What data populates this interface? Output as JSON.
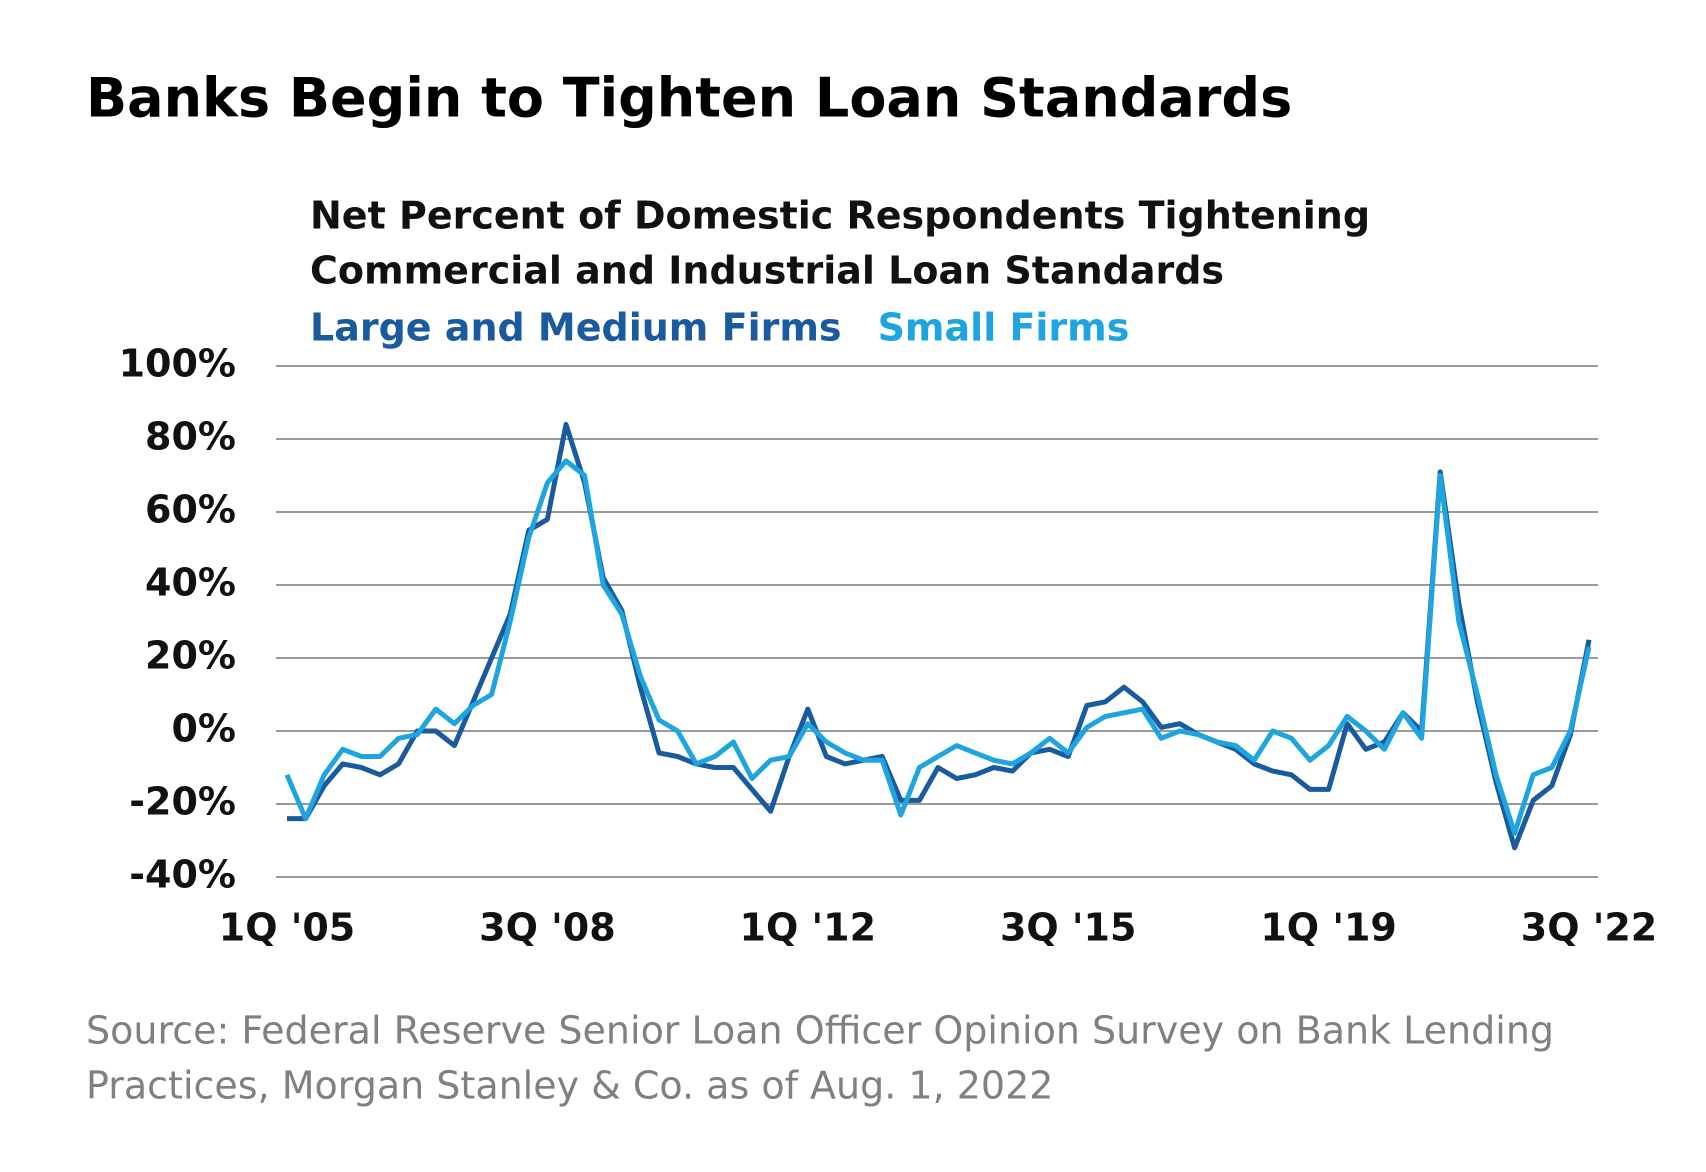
{
  "chart_data": {
    "type": "line",
    "title": "Banks Begin to Tighten Loan Standards",
    "subtitle": [
      "Net Percent of Domestic Respondents Tightening",
      "Commercial and Industrial Loan Standards"
    ],
    "categories": [
      "1Q '05",
      null,
      null,
      null,
      null,
      null,
      null,
      null,
      null,
      null,
      null,
      null,
      null,
      null,
      "3Q '08",
      null,
      null,
      null,
      null,
      null,
      null,
      null,
      null,
      null,
      null,
      null,
      null,
      null,
      "1Q '12",
      null,
      null,
      null,
      null,
      null,
      null,
      null,
      null,
      null,
      null,
      null,
      null,
      null,
      "3Q '15",
      null,
      null,
      null,
      null,
      null,
      null,
      null,
      null,
      null,
      null,
      null,
      null,
      null,
      "1Q '19",
      null,
      null,
      null,
      null,
      null,
      null,
      null,
      null,
      null,
      null,
      null,
      null,
      null,
      "3Q '22"
    ],
    "series": [
      {
        "name": "Large and Medium Firms",
        "color": "#1a5a9e",
        "values": [
          -24,
          -24,
          -15,
          -9,
          -10,
          -12,
          -9,
          0,
          0,
          -4,
          8,
          20,
          32,
          55,
          58,
          84,
          68,
          42,
          33,
          12,
          -6,
          -7,
          -9,
          -10,
          -10,
          -16,
          -22,
          -7,
          6,
          -7,
          -9,
          -8,
          -7,
          -19,
          -19,
          -10,
          -13,
          -12,
          -10,
          -11,
          -6,
          -5,
          -7,
          7,
          8,
          12,
          8,
          1,
          2,
          -1,
          -3,
          -5,
          -9,
          -11,
          -12,
          -16,
          -16,
          2,
          -5,
          -3,
          5,
          0,
          71,
          35,
          8,
          -14,
          -32,
          -19,
          -15,
          -1,
          25
        ]
      },
      {
        "name": "Small Firms",
        "color": "#1ea5e0",
        "values": [
          -12,
          -24,
          -12,
          -5,
          -7,
          -7,
          -2,
          -1,
          6,
          2,
          7,
          10,
          30,
          53,
          68,
          74,
          70,
          40,
          32,
          15,
          3,
          0,
          -9,
          -7,
          -3,
          -13,
          -8,
          -7,
          2,
          -3,
          -6,
          -8,
          -8,
          -23,
          -10,
          -7,
          -4,
          -6,
          -8,
          -9,
          -6,
          -2,
          -6,
          1,
          4,
          5,
          6,
          -2,
          0,
          -1,
          -3,
          -4,
          -8,
          0,
          -2,
          -8,
          -4,
          4,
          0,
          -5,
          5,
          -2,
          70,
          30,
          10,
          -12,
          -28,
          -12,
          -10,
          0,
          23
        ]
      }
    ],
    "ylim": [
      -40,
      100
    ],
    "yticks": [
      {
        "value": -40,
        "label": "-40%"
      },
      {
        "value": -20,
        "label": "-20%"
      },
      {
        "value": 0,
        "label": "0%"
      },
      {
        "value": 20,
        "label": "20%"
      },
      {
        "value": 40,
        "label": "40%"
      },
      {
        "value": 60,
        "label": "60%"
      },
      {
        "value": 80,
        "label": "80%"
      },
      {
        "value": 100,
        "label": "100%"
      }
    ],
    "grid": true,
    "source": [
      "Source: Federal Reserve Senior Loan Officer Opinion Survey on Bank Lending",
      "Practices, Morgan Stanley & Co. as of Aug. 1, 2022"
    ]
  }
}
